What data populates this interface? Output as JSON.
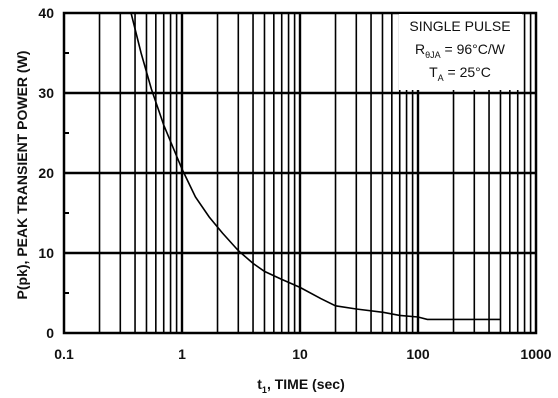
{
  "chart_data": {
    "type": "line",
    "xscale": "log",
    "xlim": [
      0.1,
      1000
    ],
    "ylim": [
      0,
      40
    ],
    "xlabel": {
      "main": "t",
      "sub": "1",
      "rest": ", TIME (sec)"
    },
    "ylabel": "P(pk), PEAK TRANSIENT POWER (W)",
    "x_ticks": [
      0.1,
      1,
      10,
      100,
      1000
    ],
    "x_tick_labels": [
      "0.1",
      "1",
      "10",
      "100",
      "1000"
    ],
    "y_ticks": [
      0,
      10,
      20,
      30,
      40
    ],
    "y_tick_labels": [
      "0",
      "10",
      "20",
      "30",
      "40"
    ],
    "grid": true,
    "legend": {
      "placement": "top-right",
      "line1": "SINGLE PULSE",
      "line2_main": "R",
      "line2_sub": "θJA",
      "line2_rest": " = 96°C/W",
      "line3_main": "T",
      "line3_sub": "A",
      "line3_rest": " = 25°C"
    },
    "series": [
      {
        "x": [
          0.37,
          0.45,
          0.55,
          0.7,
          0.85,
          1,
          1.3,
          1.7,
          2.2,
          3,
          4,
          5,
          7,
          10,
          15,
          20,
          30,
          50,
          70,
          100,
          120,
          200,
          300,
          500
        ],
        "values": [
          40,
          35,
          30.5,
          26,
          23,
          20.5,
          17,
          14.5,
          12.5,
          10.3,
          8.7,
          7.7,
          6.7,
          5.7,
          4.3,
          3.4,
          3,
          2.6,
          2.2,
          2,
          1.7,
          1.7,
          1.7,
          1.7
        ]
      }
    ]
  }
}
